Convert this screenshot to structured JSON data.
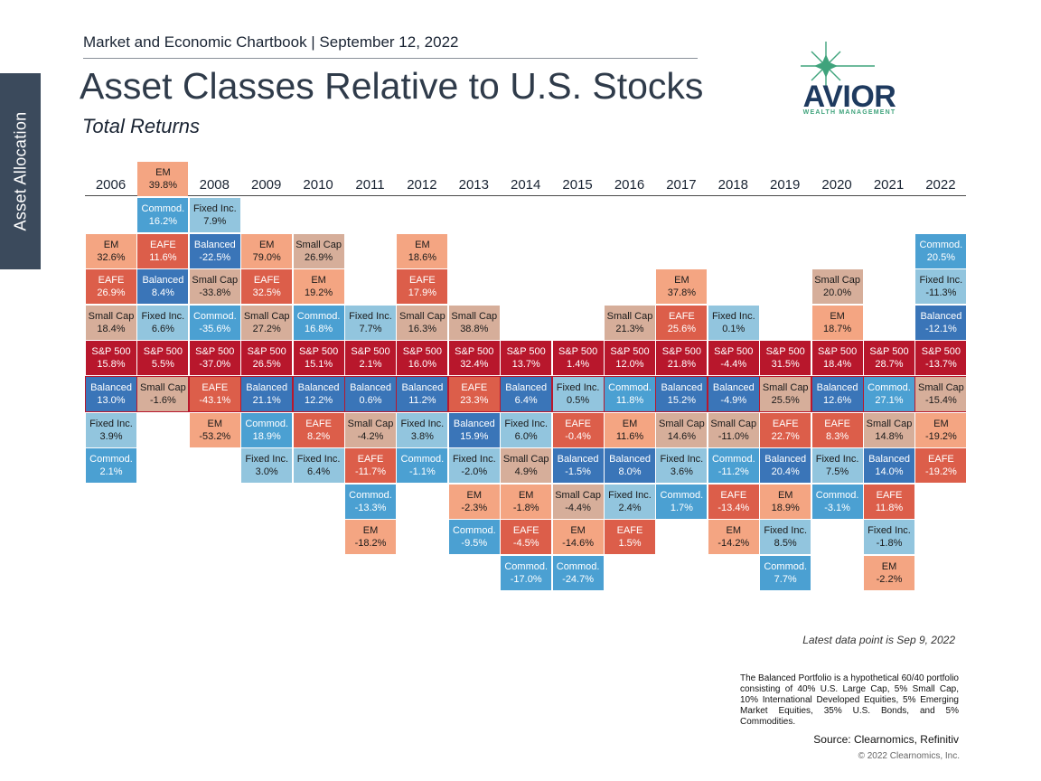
{
  "side_tab": "Asset Allocation",
  "header": {
    "line": "Market and Economic Chartbook | September 12, 2022",
    "title": "Asset Classes Relative to U.S. Stocks",
    "subtitle": "Total Returns"
  },
  "logo": {
    "name": "AVIOR",
    "tagline": "WEALTH MANAGEMENT",
    "colors": {
      "text": "#1e3a5f",
      "star": "#3fa37c"
    }
  },
  "footer": {
    "latest": "Latest data point is Sep 9, 2022",
    "note": "The Balanced Portfolio is a hypothetical 60/40 portfolio consisting of 40% U.S. Large Cap, 5% Small Cap, 10% International Developed Equities, 5% Emerging Market Equities, 35% U.S. Bonds, and 5% Commodities.",
    "source": "Source: Clearnomics, Refinitiv",
    "copyright": "© 2022 Clearnomics, Inc."
  },
  "colors": {
    "EM": "#f4a582",
    "EAFE": "#dc5e4a",
    "Small Cap": "#d6ae9a",
    "S&P 500": "#b8172c",
    "Balanced": "#3a75b8",
    "Fixed Inc.": "#92c5de",
    "Commod.": "#4ba0d2"
  },
  "chart_data": {
    "type": "table",
    "title": "Asset Classes Relative to U.S. Stocks",
    "subtitle": "Total Returns",
    "years": [
      "2006",
      "2007",
      "2008",
      "2009",
      "2010",
      "2011",
      "2012",
      "2013",
      "2014",
      "2015",
      "2016",
      "2017",
      "2018",
      "2019",
      "2020",
      "2021",
      "2022"
    ],
    "columns": [
      {
        "year": "2006",
        "sp_row": 5,
        "cells": [
          {
            "name": "EM",
            "value": "32.6%"
          },
          {
            "name": "EAFE",
            "value": "26.9%"
          },
          {
            "name": "Small Cap",
            "value": "18.4%"
          },
          {
            "name": "S&P 500",
            "value": "15.8%"
          },
          {
            "name": "Balanced",
            "value": "13.0%"
          },
          {
            "name": "Fixed Inc.",
            "value": "3.9%"
          },
          {
            "name": "Commod.",
            "value": "2.1%"
          }
        ]
      },
      {
        "year": "2007",
        "sp_row": 5,
        "cells": [
          {
            "name": "EM",
            "value": "39.8%"
          },
          {
            "name": "Commod.",
            "value": "16.2%"
          },
          {
            "name": "EAFE",
            "value": "11.6%"
          },
          {
            "name": "Balanced",
            "value": "8.4%"
          },
          {
            "name": "Fixed Inc.",
            "value": "6.6%"
          },
          {
            "name": "S&P 500",
            "value": "5.5%"
          },
          {
            "name": "Small Cap",
            "value": "-1.6%"
          }
        ]
      },
      {
        "year": "2008",
        "sp_row": 5,
        "cells": [
          {
            "name": "Fixed Inc.",
            "value": "7.9%"
          },
          {
            "name": "Balanced",
            "value": "-22.5%"
          },
          {
            "name": "Small Cap",
            "value": "-33.8%"
          },
          {
            "name": "Commod.",
            "value": "-35.6%"
          },
          {
            "name": "S&P 500",
            "value": "-37.0%"
          },
          {
            "name": "EAFE",
            "value": "-43.1%"
          },
          {
            "name": "EM",
            "value": "-53.2%"
          }
        ]
      },
      {
        "year": "2009",
        "sp_row": 5,
        "cells": [
          {
            "name": "EM",
            "value": "79.0%"
          },
          {
            "name": "EAFE",
            "value": "32.5%"
          },
          {
            "name": "Small Cap",
            "value": "27.2%"
          },
          {
            "name": "S&P 500",
            "value": "26.5%"
          },
          {
            "name": "Balanced",
            "value": "21.1%"
          },
          {
            "name": "Commod.",
            "value": "18.9%"
          },
          {
            "name": "Fixed Inc.",
            "value": "3.0%"
          }
        ]
      },
      {
        "year": "2010",
        "sp_row": 5,
        "cells": [
          {
            "name": "Small Cap",
            "value": "26.9%"
          },
          {
            "name": "EM",
            "value": "19.2%"
          },
          {
            "name": "Commod.",
            "value": "16.8%"
          },
          {
            "name": "S&P 500",
            "value": "15.1%"
          },
          {
            "name": "Balanced",
            "value": "12.2%"
          },
          {
            "name": "EAFE",
            "value": "8.2%"
          },
          {
            "name": "Fixed Inc.",
            "value": "6.4%"
          }
        ]
      },
      {
        "year": "2011",
        "sp_row": 5,
        "cells": [
          {
            "name": "Fixed Inc.",
            "value": "7.7%"
          },
          {
            "name": "S&P 500",
            "value": "2.1%"
          },
          {
            "name": "Balanced",
            "value": "0.6%"
          },
          {
            "name": "Small Cap",
            "value": "-4.2%"
          },
          {
            "name": "EAFE",
            "value": "-11.7%"
          },
          {
            "name": "Commod.",
            "value": "-13.3%"
          },
          {
            "name": "EM",
            "value": "-18.2%"
          }
        ]
      },
      {
        "year": "2012",
        "sp_row": 5,
        "cells": [
          {
            "name": "EM",
            "value": "18.6%"
          },
          {
            "name": "EAFE",
            "value": "17.9%"
          },
          {
            "name": "Small Cap",
            "value": "16.3%"
          },
          {
            "name": "S&P 500",
            "value": "16.0%"
          },
          {
            "name": "Balanced",
            "value": "11.2%"
          },
          {
            "name": "Fixed Inc.",
            "value": "3.8%"
          },
          {
            "name": "Commod.",
            "value": "-1.1%"
          }
        ]
      },
      {
        "year": "2013",
        "sp_row": 5,
        "cells": [
          {
            "name": "Small Cap",
            "value": "38.8%"
          },
          {
            "name": "S&P 500",
            "value": "32.4%"
          },
          {
            "name": "EAFE",
            "value": "23.3%"
          },
          {
            "name": "Balanced",
            "value": "15.9%"
          },
          {
            "name": "Fixed Inc.",
            "value": "-2.0%"
          },
          {
            "name": "EM",
            "value": "-2.3%"
          },
          {
            "name": "Commod.",
            "value": "-9.5%"
          }
        ]
      },
      {
        "year": "2014",
        "sp_row": 5,
        "cells": [
          {
            "name": "S&P 500",
            "value": "13.7%"
          },
          {
            "name": "Balanced",
            "value": "6.4%"
          },
          {
            "name": "Fixed Inc.",
            "value": "6.0%"
          },
          {
            "name": "Small Cap",
            "value": "4.9%"
          },
          {
            "name": "EM",
            "value": "-1.8%"
          },
          {
            "name": "EAFE",
            "value": "-4.5%"
          },
          {
            "name": "Commod.",
            "value": "-17.0%"
          }
        ]
      },
      {
        "year": "2015",
        "sp_row": 5,
        "cells": [
          {
            "name": "S&P 500",
            "value": "1.4%"
          },
          {
            "name": "Fixed Inc.",
            "value": "0.5%"
          },
          {
            "name": "EAFE",
            "value": "-0.4%"
          },
          {
            "name": "Balanced",
            "value": "-1.5%"
          },
          {
            "name": "Small Cap",
            "value": "-4.4%"
          },
          {
            "name": "EM",
            "value": "-14.6%"
          },
          {
            "name": "Commod.",
            "value": "-24.7%"
          }
        ]
      },
      {
        "year": "2016",
        "sp_row": 5,
        "cells": [
          {
            "name": "Small Cap",
            "value": "21.3%"
          },
          {
            "name": "S&P 500",
            "value": "12.0%"
          },
          {
            "name": "Commod.",
            "value": "11.8%"
          },
          {
            "name": "EM",
            "value": "11.6%"
          },
          {
            "name": "Balanced",
            "value": "8.0%"
          },
          {
            "name": "Fixed Inc.",
            "value": "2.4%"
          },
          {
            "name": "EAFE",
            "value": "1.5%"
          }
        ]
      },
      {
        "year": "2017",
        "sp_row": 5,
        "cells": [
          {
            "name": "EM",
            "value": "37.8%"
          },
          {
            "name": "EAFE",
            "value": "25.6%"
          },
          {
            "name": "S&P 500",
            "value": "21.8%"
          },
          {
            "name": "Balanced",
            "value": "15.2%"
          },
          {
            "name": "Small Cap",
            "value": "14.6%"
          },
          {
            "name": "Fixed Inc.",
            "value": "3.6%"
          },
          {
            "name": "Commod.",
            "value": "1.7%"
          }
        ]
      },
      {
        "year": "2018",
        "sp_row": 5,
        "cells": [
          {
            "name": "Fixed Inc.",
            "value": "0.1%"
          },
          {
            "name": "S&P 500",
            "value": "-4.4%"
          },
          {
            "name": "Balanced",
            "value": "-4.9%"
          },
          {
            "name": "Small Cap",
            "value": "-11.0%"
          },
          {
            "name": "Commod.",
            "value": "-11.2%"
          },
          {
            "name": "EAFE",
            "value": "-13.4%"
          },
          {
            "name": "EM",
            "value": "-14.2%"
          }
        ]
      },
      {
        "year": "2019",
        "sp_row": 5,
        "cells": [
          {
            "name": "S&P 500",
            "value": "31.5%"
          },
          {
            "name": "Small Cap",
            "value": "25.5%"
          },
          {
            "name": "EAFE",
            "value": "22.7%"
          },
          {
            "name": "Balanced",
            "value": "20.4%"
          },
          {
            "name": "EM",
            "value": "18.9%"
          },
          {
            "name": "Fixed Inc.",
            "value": "8.5%"
          },
          {
            "name": "Commod.",
            "value": "7.7%"
          }
        ]
      },
      {
        "year": "2020",
        "sp_row": 5,
        "cells": [
          {
            "name": "Small Cap",
            "value": "20.0%"
          },
          {
            "name": "EM",
            "value": "18.7%"
          },
          {
            "name": "S&P 500",
            "value": "18.4%"
          },
          {
            "name": "Balanced",
            "value": "12.6%"
          },
          {
            "name": "EAFE",
            "value": "8.3%"
          },
          {
            "name": "Fixed Inc.",
            "value": "7.5%"
          },
          {
            "name": "Commod.",
            "value": "-3.1%"
          }
        ]
      },
      {
        "year": "2021",
        "sp_row": 5,
        "cells": [
          {
            "name": "S&P 500",
            "value": "28.7%"
          },
          {
            "name": "Commod.",
            "value": "27.1%"
          },
          {
            "name": "Small Cap",
            "value": "14.8%"
          },
          {
            "name": "Balanced",
            "value": "14.0%"
          },
          {
            "name": "EAFE",
            "value": "11.8%"
          },
          {
            "name": "Fixed Inc.",
            "value": "-1.8%"
          },
          {
            "name": "EM",
            "value": "-2.2%"
          }
        ]
      },
      {
        "year": "2022",
        "sp_row": 5,
        "cells": [
          {
            "name": "Commod.",
            "value": "20.5%"
          },
          {
            "name": "Fixed Inc.",
            "value": "-11.3%"
          },
          {
            "name": "Balanced",
            "value": "-12.1%"
          },
          {
            "name": "S&P 500",
            "value": "-13.7%"
          },
          {
            "name": "Small Cap",
            "value": "-15.4%"
          },
          {
            "name": "EM",
            "value": "-19.2%"
          },
          {
            "name": "EAFE",
            "value": "-19.2%"
          }
        ]
      }
    ]
  }
}
